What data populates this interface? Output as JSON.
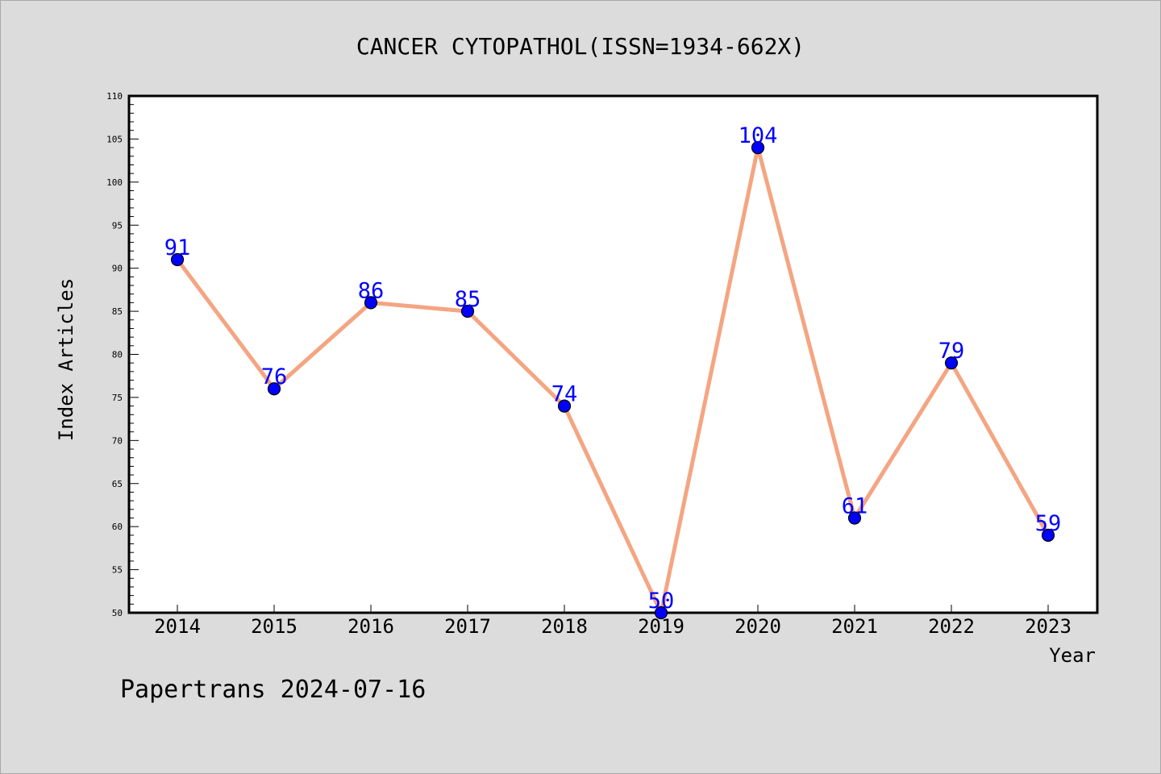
{
  "chart_data": {
    "type": "line",
    "title": "CANCER CYTOPATHOL(ISSN=1934-662X)",
    "xlabel": "Year",
    "ylabel": "Index Articles",
    "categories": [
      "2014",
      "2015",
      "2016",
      "2017",
      "2018",
      "2019",
      "2020",
      "2021",
      "2022",
      "2023"
    ],
    "values": [
      91,
      76,
      86,
      85,
      74,
      50,
      104,
      61,
      79,
      59
    ],
    "data_labels": [
      "91",
      "76",
      "86",
      "85",
      "74",
      "50",
      "104",
      "61",
      "79",
      "59"
    ],
    "ylim": [
      50,
      110
    ],
    "yticks": [
      "50",
      "55",
      "60",
      "65",
      "70",
      "75",
      "80",
      "85",
      "90",
      "95",
      "100",
      "105",
      "110"
    ],
    "grid": false,
    "line_color": "#f4a582",
    "marker_color": "#0000ff",
    "label_color": "#0000ff"
  },
  "footer": {
    "text": "Papertrans 2024-07-16"
  }
}
